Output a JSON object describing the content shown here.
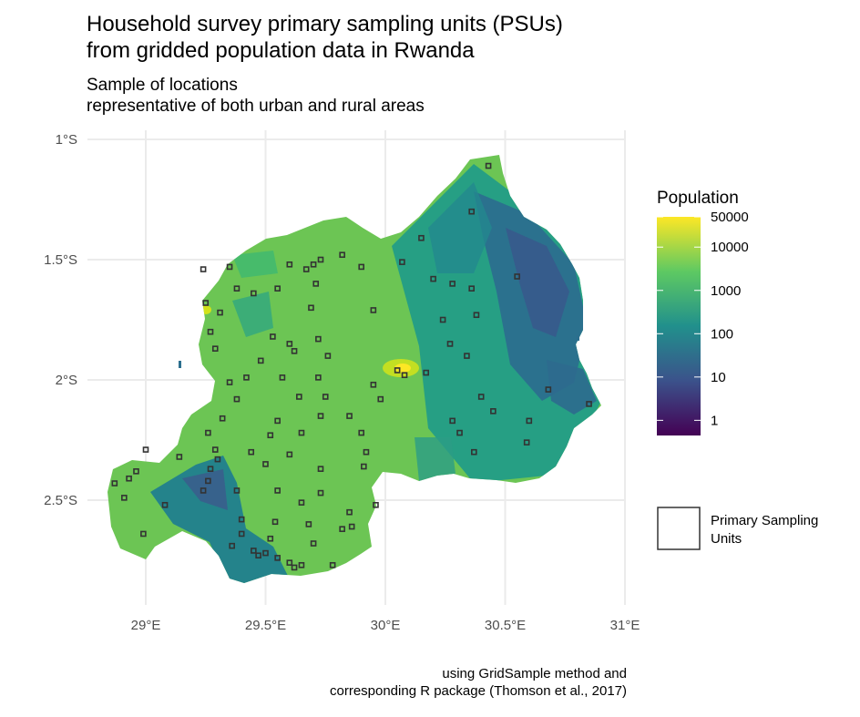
{
  "title": [
    "Household survey primary sampling units (PSUs)",
    "from gridded population data in Rwanda"
  ],
  "subtitle": [
    "Sample of locations",
    "representative of both urban and rural areas"
  ],
  "caption": [
    "using GridSample method and",
    "corresponding R package (Thomson et al., 2017)"
  ],
  "axes": {
    "x_ticks": [
      "29°E",
      "29.5°E",
      "30°E",
      "30.5°E",
      "31°E"
    ],
    "x_values": [
      29.0,
      29.5,
      30.0,
      30.5,
      31.0
    ],
    "y_ticks": [
      "1°S",
      "1.5°S",
      "2°S",
      "2.5°S"
    ],
    "y_values": [
      -1.0,
      -1.5,
      -2.0,
      -2.5
    ],
    "x_range": [
      28.75,
      31.0
    ],
    "y_range": [
      -2.9,
      -1.0
    ],
    "grid": true
  },
  "legend_population": {
    "title": "Population",
    "scale": "log",
    "colormap": "viridis",
    "labels": [
      "50000",
      "10000",
      "1000",
      "100",
      "10",
      "1"
    ],
    "colors": [
      "#440154",
      "#3b528b",
      "#21908c",
      "#5ec962",
      "#fde725"
    ]
  },
  "legend_psu": {
    "label": [
      "Primary Sampling",
      "Units"
    ],
    "stroke": "#333333"
  },
  "psu_units": [
    {
      "lon": 30.43,
      "lat": -1.11
    },
    {
      "lon": 30.36,
      "lat": -1.3
    },
    {
      "lon": 30.15,
      "lat": -1.41
    },
    {
      "lon": 30.07,
      "lat": -1.51
    },
    {
      "lon": 29.73,
      "lat": -1.5
    },
    {
      "lon": 29.7,
      "lat": -1.52
    },
    {
      "lon": 29.67,
      "lat": -1.54
    },
    {
      "lon": 29.6,
      "lat": -1.52
    },
    {
      "lon": 29.35,
      "lat": -1.53
    },
    {
      "lon": 29.24,
      "lat": -1.54
    },
    {
      "lon": 29.82,
      "lat": -1.48
    },
    {
      "lon": 29.9,
      "lat": -1.53
    },
    {
      "lon": 30.2,
      "lat": -1.58
    },
    {
      "lon": 30.28,
      "lat": -1.6
    },
    {
      "lon": 30.55,
      "lat": -1.57
    },
    {
      "lon": 29.38,
      "lat": -1.62
    },
    {
      "lon": 29.45,
      "lat": -1.64
    },
    {
      "lon": 29.55,
      "lat": -1.62
    },
    {
      "lon": 29.71,
      "lat": -1.6
    },
    {
      "lon": 29.25,
      "lat": -1.68
    },
    {
      "lon": 29.31,
      "lat": -1.72
    },
    {
      "lon": 29.69,
      "lat": -1.7
    },
    {
      "lon": 29.95,
      "lat": -1.71
    },
    {
      "lon": 30.38,
      "lat": -1.73
    },
    {
      "lon": 30.24,
      "lat": -1.75
    },
    {
      "lon": 30.36,
      "lat": -1.62
    },
    {
      "lon": 29.27,
      "lat": -1.8
    },
    {
      "lon": 29.53,
      "lat": -1.82
    },
    {
      "lon": 29.72,
      "lat": -1.83
    },
    {
      "lon": 29.6,
      "lat": -1.85
    },
    {
      "lon": 29.29,
      "lat": -1.87
    },
    {
      "lon": 29.48,
      "lat": -1.92
    },
    {
      "lon": 29.76,
      "lat": -1.9
    },
    {
      "lon": 30.27,
      "lat": -1.85
    },
    {
      "lon": 30.34,
      "lat": -1.9
    },
    {
      "lon": 30.05,
      "lat": -1.96
    },
    {
      "lon": 30.08,
      "lat": -1.98
    },
    {
      "lon": 29.62,
      "lat": -1.88
    },
    {
      "lon": 29.42,
      "lat": -1.99
    },
    {
      "lon": 29.35,
      "lat": -2.01
    },
    {
      "lon": 29.57,
      "lat": -1.99
    },
    {
      "lon": 29.72,
      "lat": -1.99
    },
    {
      "lon": 29.95,
      "lat": -2.02
    },
    {
      "lon": 30.17,
      "lat": -1.97
    },
    {
      "lon": 29.38,
      "lat": -2.08
    },
    {
      "lon": 29.64,
      "lat": -2.07
    },
    {
      "lon": 29.75,
      "lat": -2.07
    },
    {
      "lon": 29.98,
      "lat": -2.08
    },
    {
      "lon": 30.4,
      "lat": -2.07
    },
    {
      "lon": 30.68,
      "lat": -2.04
    },
    {
      "lon": 30.85,
      "lat": -2.1
    },
    {
      "lon": 29.32,
      "lat": -2.16
    },
    {
      "lon": 29.55,
      "lat": -2.17
    },
    {
      "lon": 29.73,
      "lat": -2.15
    },
    {
      "lon": 29.85,
      "lat": -2.15
    },
    {
      "lon": 30.28,
      "lat": -2.17
    },
    {
      "lon": 30.45,
      "lat": -2.13
    },
    {
      "lon": 30.6,
      "lat": -2.17
    },
    {
      "lon": 29.26,
      "lat": -2.22
    },
    {
      "lon": 29.52,
      "lat": -2.23
    },
    {
      "lon": 29.65,
      "lat": -2.22
    },
    {
      "lon": 29.9,
      "lat": -2.22
    },
    {
      "lon": 30.31,
      "lat": -2.22
    },
    {
      "lon": 30.59,
      "lat": -2.26
    },
    {
      "lon": 29.0,
      "lat": -2.29
    },
    {
      "lon": 29.14,
      "lat": -2.32
    },
    {
      "lon": 29.29,
      "lat": -2.29
    },
    {
      "lon": 29.44,
      "lat": -2.3
    },
    {
      "lon": 29.6,
      "lat": -2.31
    },
    {
      "lon": 29.92,
      "lat": -2.3
    },
    {
      "lon": 30.37,
      "lat": -2.3
    },
    {
      "lon": 29.27,
      "lat": -2.37
    },
    {
      "lon": 29.3,
      "lat": -2.33
    },
    {
      "lon": 29.26,
      "lat": -2.42
    },
    {
      "lon": 29.24,
      "lat": -2.46
    },
    {
      "lon": 29.5,
      "lat": -2.35
    },
    {
      "lon": 29.73,
      "lat": -2.37
    },
    {
      "lon": 29.91,
      "lat": -2.36
    },
    {
      "lon": 28.96,
      "lat": -2.38
    },
    {
      "lon": 28.93,
      "lat": -2.41
    },
    {
      "lon": 28.87,
      "lat": -2.43
    },
    {
      "lon": 29.38,
      "lat": -2.46
    },
    {
      "lon": 29.55,
      "lat": -2.46
    },
    {
      "lon": 29.73,
      "lat": -2.47
    },
    {
      "lon": 28.91,
      "lat": -2.49
    },
    {
      "lon": 29.65,
      "lat": -2.51
    },
    {
      "lon": 29.85,
      "lat": -2.55
    },
    {
      "lon": 29.96,
      "lat": -2.52
    },
    {
      "lon": 29.08,
      "lat": -2.52
    },
    {
      "lon": 29.4,
      "lat": -2.58
    },
    {
      "lon": 29.54,
      "lat": -2.59
    },
    {
      "lon": 29.68,
      "lat": -2.6
    },
    {
      "lon": 29.82,
      "lat": -2.62
    },
    {
      "lon": 28.99,
      "lat": -2.64
    },
    {
      "lon": 29.52,
      "lat": -2.66
    },
    {
      "lon": 29.7,
      "lat": -2.68
    },
    {
      "lon": 29.36,
      "lat": -2.69
    },
    {
      "lon": 29.45,
      "lat": -2.71
    },
    {
      "lon": 29.47,
      "lat": -2.73
    },
    {
      "lon": 29.5,
      "lat": -2.72
    },
    {
      "lon": 29.55,
      "lat": -2.74
    },
    {
      "lon": 29.6,
      "lat": -2.76
    },
    {
      "lon": 29.62,
      "lat": -2.78
    },
    {
      "lon": 29.65,
      "lat": -2.77
    },
    {
      "lon": 29.78,
      "lat": -2.77
    },
    {
      "lon": 29.86,
      "lat": -2.61
    },
    {
      "lon": 29.4,
      "lat": -2.64
    }
  ]
}
